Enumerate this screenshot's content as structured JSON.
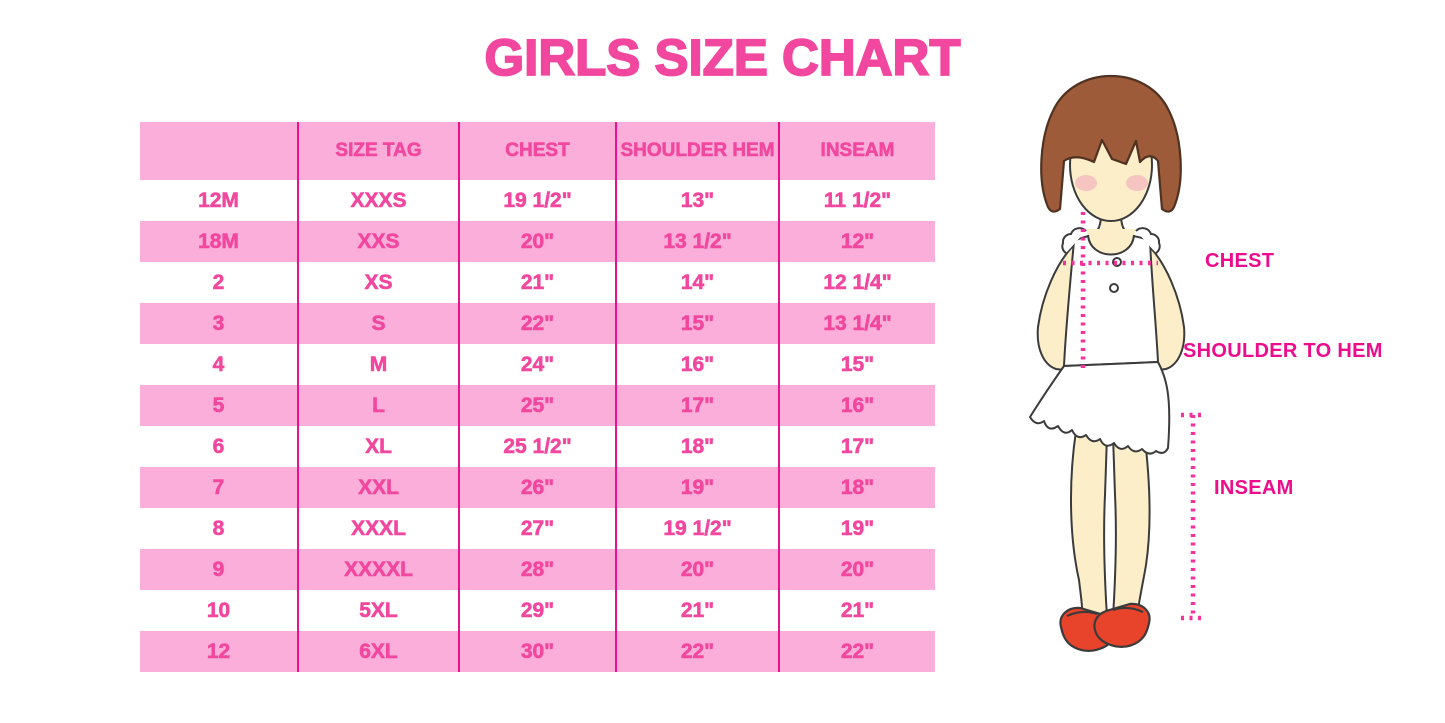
{
  "title": "GIRLS SIZE CHART",
  "chart_data": {
    "type": "table",
    "title": "GIRLS SIZE CHART",
    "columns": [
      "",
      "SIZE TAG",
      "CHEST",
      "SHOULDER HEM",
      "INSEAM"
    ],
    "rows": [
      [
        "12M",
        "XXXS",
        "19 1/2\"",
        "13\"",
        "11 1/2\""
      ],
      [
        "18M",
        "XXS",
        "20\"",
        "13 1/2\"",
        "12\""
      ],
      [
        "2",
        "XS",
        "21\"",
        "14\"",
        "12 1/4\""
      ],
      [
        "3",
        "S",
        "22\"",
        "15\"",
        "13 1/4\""
      ],
      [
        "4",
        "M",
        "24\"",
        "16\"",
        "15\""
      ],
      [
        "5",
        "L",
        "25\"",
        "17\"",
        "16\""
      ],
      [
        "6",
        "XL",
        "25 1/2\"",
        "18\"",
        "17\""
      ],
      [
        "7",
        "XXL",
        "26\"",
        "19\"",
        "18\""
      ],
      [
        "8",
        "XXXL",
        "27\"",
        "19 1/2\"",
        "19\""
      ],
      [
        "9",
        "XXXXL",
        "28\"",
        "20\"",
        "20\""
      ],
      [
        "10",
        "5XL",
        "29\"",
        "21\"",
        "21\""
      ],
      [
        "12",
        "6XL",
        "30\"",
        "22\"",
        "22\""
      ]
    ]
  },
  "diagram": {
    "labels": {
      "chest": "CHEST",
      "shoulder_to_hem": "SHOULDER TO HEM",
      "inseam": "INSEAM"
    }
  },
  "colors": {
    "title_pink": "#F2479E",
    "row_pink": "#FBAEDA",
    "divider_magenta": "#E9128B",
    "label_magenta": "#EC0C8C",
    "dotted_line_pink": "#F5329B",
    "hair_brown": "#9E5B39",
    "skin": "#FBEEC9",
    "blush_pink": "#F4A8BC",
    "shoe_red": "#E8432B"
  }
}
